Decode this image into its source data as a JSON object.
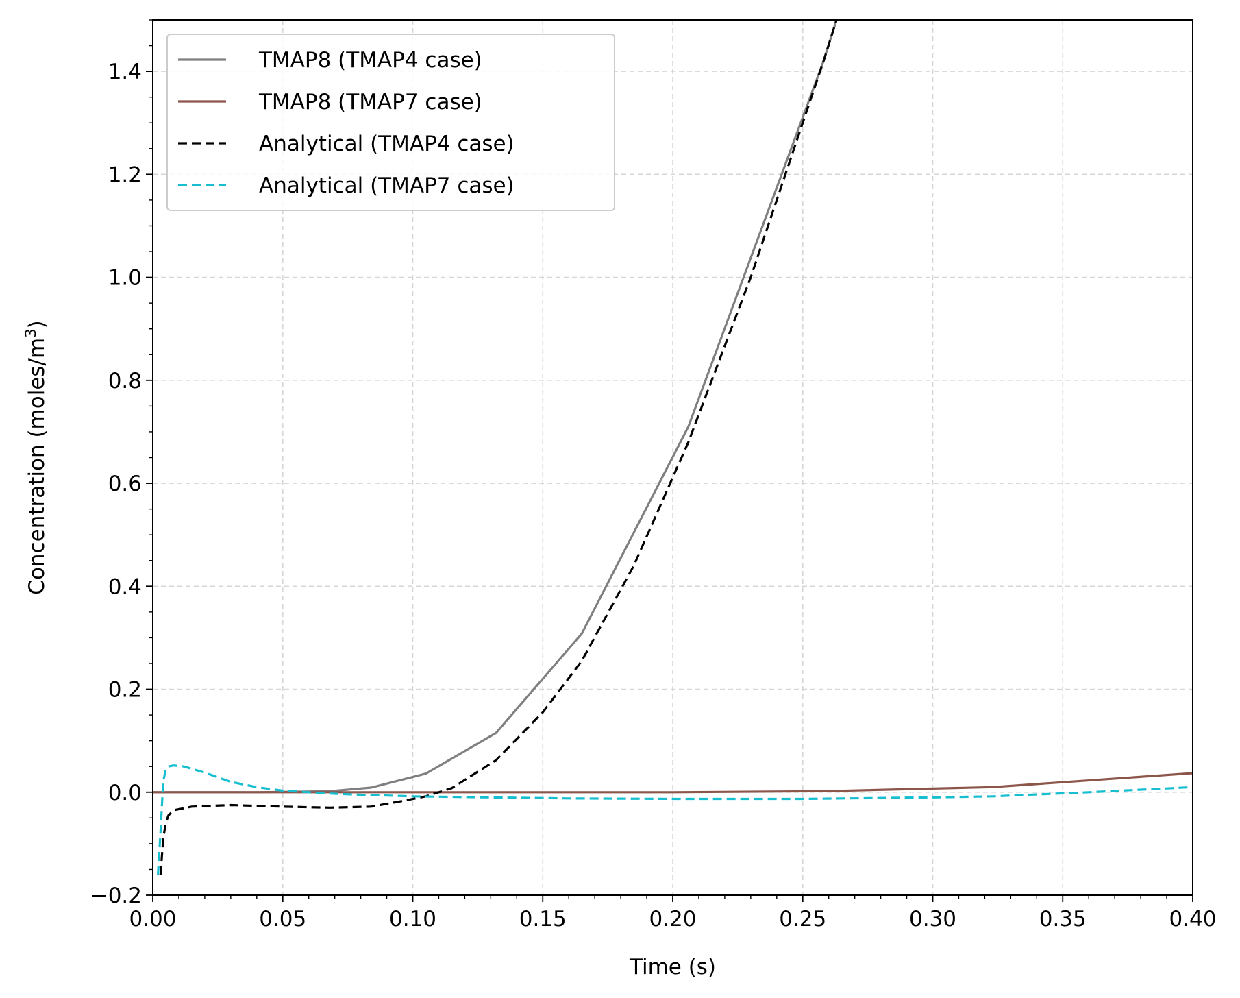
{
  "chart_data": {
    "type": "line",
    "title": "",
    "xlabel": "Time (s)",
    "ylabel": "Concentration (moles/m",
    "ylabel_sup": "3",
    "ylabel_close": ")",
    "xlim": [
      0.0,
      0.4
    ],
    "ylim": [
      -0.2,
      1.5
    ],
    "xticks": [
      0.0,
      0.05,
      0.1,
      0.15,
      0.2,
      0.25,
      0.3,
      0.35,
      0.4
    ],
    "xtick_labels": [
      "0.00",
      "0.05",
      "0.10",
      "0.15",
      "0.20",
      "0.25",
      "0.30",
      "0.35",
      "0.40"
    ],
    "yticks": [
      -0.2,
      0.0,
      0.2,
      0.4,
      0.6,
      0.8,
      1.0,
      1.2,
      1.4
    ],
    "ytick_labels": [
      "−0.2",
      "0.0",
      "0.2",
      "0.4",
      "0.6",
      "0.8",
      "1.0",
      "1.2",
      "1.4"
    ],
    "grid": true,
    "legend_position": "top-left",
    "series": [
      {
        "name": "TMAP8 (TMAP4 case)",
        "color": "#7f7f7f",
        "dash": "solid",
        "x": [
          0.0,
          0.02,
          0.04,
          0.068,
          0.084,
          0.105,
          0.132,
          0.165,
          0.206,
          0.258,
          0.263
        ],
        "y": [
          0.0,
          0.0,
          0.0,
          0.002,
          0.009,
          0.036,
          0.115,
          0.308,
          0.71,
          1.42,
          1.5
        ]
      },
      {
        "name": "TMAP8 (TMAP7 case)",
        "color": "#8c564b",
        "dash": "solid",
        "x": [
          0.0,
          0.05,
          0.1,
          0.15,
          0.2,
          0.258,
          0.323,
          0.4
        ],
        "y": [
          0.0,
          0.0,
          0.0,
          0.0,
          0.0,
          0.002,
          0.01,
          0.037
        ]
      },
      {
        "name": "Analytical (TMAP4 case)",
        "color": "#000000",
        "dash": "dashed",
        "x": [
          0.003,
          0.004,
          0.005,
          0.006,
          0.008,
          0.015,
          0.03,
          0.05,
          0.068,
          0.084,
          0.095,
          0.105,
          0.115,
          0.132,
          0.15,
          0.165,
          0.185,
          0.206,
          0.23,
          0.258,
          0.263
        ],
        "y": [
          -0.16,
          -0.09,
          -0.06,
          -0.045,
          -0.035,
          -0.028,
          -0.025,
          -0.028,
          -0.03,
          -0.028,
          -0.018,
          -0.008,
          0.008,
          0.062,
          0.155,
          0.255,
          0.44,
          0.68,
          1.0,
          1.42,
          1.5
        ]
      },
      {
        "name": "Analytical (TMAP7 case)",
        "color": "#17becf",
        "dash": "dashed",
        "x": [
          0.002,
          0.003,
          0.004,
          0.005,
          0.006,
          0.008,
          0.012,
          0.02,
          0.03,
          0.04,
          0.05,
          0.06,
          0.07,
          0.08,
          0.1,
          0.13,
          0.16,
          0.2,
          0.25,
          0.3,
          0.323,
          0.36,
          0.4
        ],
        "y": [
          -0.16,
          -0.075,
          0.02,
          0.045,
          0.05,
          0.052,
          0.05,
          0.038,
          0.02,
          0.01,
          0.003,
          0.0,
          -0.003,
          -0.005,
          -0.008,
          -0.01,
          -0.012,
          -0.013,
          -0.013,
          -0.01,
          -0.008,
          0.0,
          0.01
        ]
      }
    ]
  }
}
